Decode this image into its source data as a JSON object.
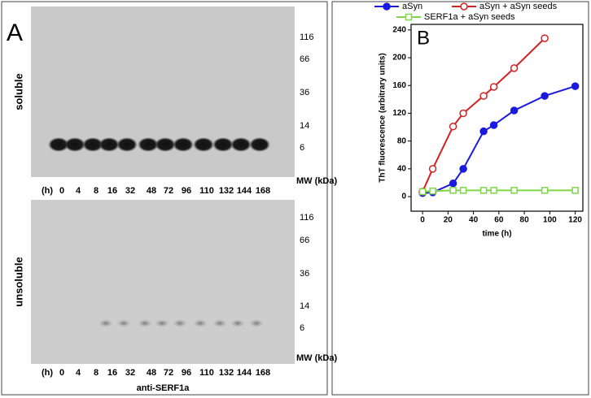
{
  "panel_a": {
    "letter": "A",
    "antibody": "anti-SERF1a",
    "blots": [
      {
        "label": "soluble",
        "hours_label": "(h)",
        "lanes": [
          0,
          4,
          8,
          16,
          32,
          48,
          72,
          96,
          110,
          132,
          144,
          168
        ],
        "mw": [
          116,
          66,
          36,
          14,
          6
        ],
        "mw_unit": "MW (kDa)"
      },
      {
        "label": "unsoluble",
        "hours_label": "(h)",
        "lanes": [
          0,
          4,
          8,
          16,
          32,
          48,
          72,
          96,
          110,
          132,
          144,
          168
        ],
        "mw": [
          116,
          66,
          36,
          14,
          6
        ],
        "mw_unit": "MW (kDa)"
      }
    ]
  },
  "panel_b": {
    "letter": "B"
  },
  "chart_data": {
    "type": "line",
    "x_label": "time (h)",
    "y_label": "ThT fluorescence (arbitrary units)",
    "xlim": [
      -9,
      126
    ],
    "ylim": [
      -21,
      248
    ],
    "xticks": [
      0,
      20,
      40,
      60,
      80,
      100,
      120
    ],
    "yticks": [
      0,
      40,
      80,
      120,
      160,
      200,
      240
    ],
    "grid": false,
    "series": [
      {
        "name": "aSyn",
        "color": "#1a1adf",
        "marker": "filled-circle",
        "x": [
          0,
          8,
          24,
          32,
          48,
          56,
          72,
          96,
          120
        ],
        "values": [
          5,
          6,
          19,
          40,
          94,
          103,
          124,
          145,
          159
        ]
      },
      {
        "name": "aSyn + aSyn seeds",
        "color": "#d22222",
        "marker": "open-circle",
        "x": [
          0,
          8,
          24,
          32,
          48,
          56,
          72,
          96
        ],
        "values": [
          7,
          40,
          101,
          120,
          145,
          158,
          185,
          228
        ]
      },
      {
        "name": "SERF1a + aSyn seeds",
        "color": "#7ed648",
        "marker": "open-square",
        "x": [
          0,
          8,
          24,
          32,
          48,
          56,
          72,
          96,
          120
        ],
        "values": [
          7,
          8,
          9,
          9,
          9,
          9,
          9,
          9,
          9
        ]
      }
    ]
  }
}
